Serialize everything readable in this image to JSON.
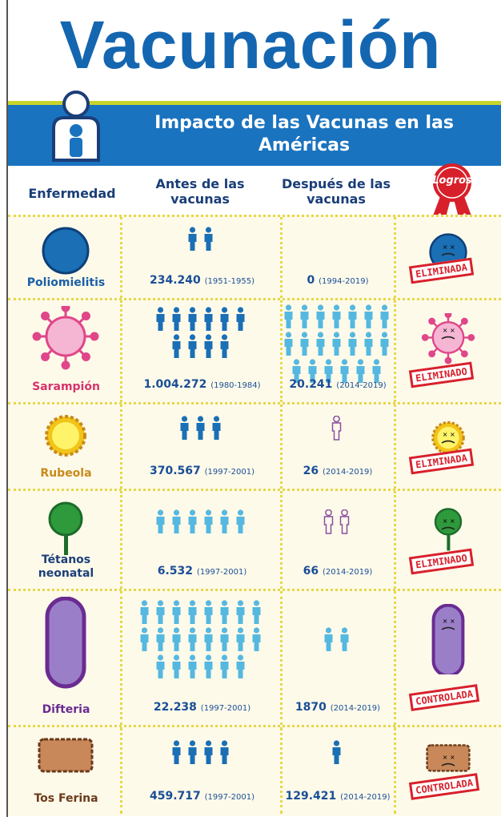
{
  "header": {
    "title": "Vacunación",
    "banner": "Impacto de las Vacunas en las Américas"
  },
  "columns": {
    "disease": "Enfermedad",
    "before": "Antes de las vacunas",
    "after": "Después de las vacunas",
    "achievements": "Logros"
  },
  "rows": [
    {
      "name": "Poliomielitis",
      "before": "234.240",
      "before_period": "(1951-1955)",
      "after": "0",
      "after_period": "(1994-2019)",
      "status": "ELIMINADA",
      "before_icons": {
        "count": 2,
        "style": "dark",
        "wrap": 6
      },
      "after_icons": {
        "count": 0,
        "style": "light",
        "wrap": 7
      }
    },
    {
      "name": "Sarampión",
      "before": "1.004.272",
      "before_period": "(1980-1984)",
      "after": "20.241",
      "after_period": "(2014-2019)",
      "status": "ELIMINADO",
      "before_icons": {
        "count": 10,
        "style": "dark",
        "wrap": 6
      },
      "after_icons": {
        "count": 20,
        "style": "light",
        "wrap": 7
      }
    },
    {
      "name": "Rubeola",
      "before": "370.567",
      "before_period": "(1997-2001)",
      "after": "26",
      "after_period": "(2014-2019)",
      "status": "ELIMINADA",
      "before_icons": {
        "count": 3,
        "style": "dark",
        "wrap": 6
      },
      "after_icons": {
        "count": 1,
        "style": "outline",
        "wrap": 7
      }
    },
    {
      "name": "Tétanos neonatal",
      "before": "6.532",
      "before_period": "(1997-2001)",
      "after": "66",
      "after_period": "(2014-2019)",
      "status": "ELIMINADO",
      "before_icons": {
        "count": 6,
        "style": "light",
        "wrap": 6
      },
      "after_icons": {
        "count": 2,
        "style": "outline",
        "wrap": 7
      }
    },
    {
      "name": "Difteria",
      "before": "22.238",
      "before_period": "(1997-2001)",
      "after": "1870",
      "after_period": "(2014-2019)",
      "status": "CONTROLADA",
      "before_icons": {
        "count": 22,
        "style": "light",
        "wrap": 8
      },
      "after_icons": {
        "count": 2,
        "style": "light",
        "wrap": 7
      }
    },
    {
      "name": "Tos Ferina",
      "before": "459.717",
      "before_period": "(1997-2001)",
      "after": "129.421",
      "after_period": "(2014-2019)",
      "status": "CONTROLADA",
      "before_icons": {
        "count": 4,
        "style": "dark",
        "wrap": 6
      },
      "after_icons": {
        "count": 1,
        "style": "dark",
        "wrap": 7
      }
    }
  ]
}
